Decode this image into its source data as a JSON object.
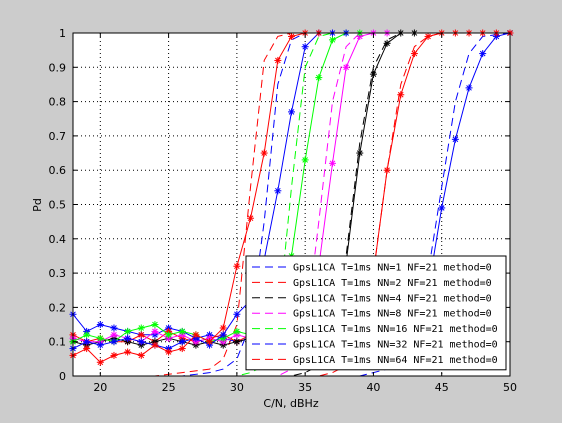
{
  "chart_data": {
    "type": "line",
    "xlabel": "C/N, dBHz",
    "ylabel": "Pd",
    "xlim": [
      18,
      50
    ],
    "ylim": [
      0,
      1
    ],
    "x_ticks": [
      20,
      25,
      30,
      35,
      40,
      45,
      50
    ],
    "y_ticks": [
      0,
      0.1,
      0.2,
      0.3,
      0.4,
      0.5,
      0.6,
      0.7,
      0.8,
      0.9,
      1
    ],
    "grid": true,
    "legend_position": "bottom-right",
    "series": [
      {
        "name": "GpsL1CA T=1ms NN=1 NF=21 method=0",
        "color": "#0000ff",
        "dash": true,
        "x": [
          18,
          20,
          22,
          24,
          26,
          28,
          29,
          30,
          31,
          32,
          33,
          34,
          35,
          36,
          37,
          38,
          39,
          40,
          41,
          42,
          43,
          44,
          45,
          46,
          47,
          48,
          50
        ],
        "y": [
          0,
          0,
          0,
          0,
          0,
          0,
          0,
          0,
          0,
          0,
          0,
          0,
          0,
          0,
          0,
          0,
          0,
          0.01,
          0.02,
          0.05,
          0.12,
          0.3,
          0.55,
          0.8,
          0.94,
          0.99,
          1
        ]
      },
      {
        "name": "GpsL1CA T=1ms NN=2 NF=21 method=0",
        "color": "#ff0000",
        "dash": true,
        "x": [
          18,
          20,
          22,
          24,
          26,
          28,
          30,
          32,
          34,
          35,
          36,
          37,
          38,
          39,
          40,
          41,
          42,
          43,
          44,
          45,
          46,
          50
        ],
        "y": [
          0,
          0,
          0,
          0,
          0,
          0,
          0,
          0,
          0,
          0,
          0,
          0.01,
          0.03,
          0.1,
          0.3,
          0.6,
          0.85,
          0.96,
          0.99,
          1,
          1,
          1
        ]
      },
      {
        "name": "GpsL1CA T=1ms NN=4 NF=21 method=0",
        "color": "#000000",
        "dash": true,
        "x": [
          18,
          20,
          22,
          24,
          26,
          28,
          30,
          32,
          34,
          35,
          36,
          37,
          38,
          39,
          40,
          41,
          42,
          43,
          50
        ],
        "y": [
          0,
          0,
          0,
          0,
          0,
          0,
          0,
          0,
          0,
          0.01,
          0.03,
          0.12,
          0.35,
          0.68,
          0.9,
          0.98,
          1,
          1,
          1
        ]
      },
      {
        "name": "GpsL1CA T=1ms NN=8 NF=21 method=0",
        "color": "#ff00ff",
        "dash": true,
        "x": [
          18,
          20,
          22,
          24,
          26,
          28,
          30,
          32,
          33,
          34,
          35,
          36,
          37,
          38,
          39,
          40,
          41,
          50
        ],
        "y": [
          0,
          0,
          0,
          0,
          0,
          0,
          0,
          0,
          0,
          0.02,
          0.12,
          0.45,
          0.8,
          0.96,
          1,
          1,
          1,
          1
        ]
      },
      {
        "name": "GpsL1CA T=1ms NN=16 NF=21 method=0",
        "color": "#00ff00",
        "dash": true,
        "x": [
          18,
          20,
          22,
          24,
          26,
          28,
          30,
          31,
          32,
          33,
          34,
          35,
          36,
          37,
          38,
          39,
          40,
          50
        ],
        "y": [
          0,
          0,
          0,
          0,
          0,
          0,
          0,
          0.01,
          0.03,
          0.15,
          0.55,
          0.9,
          0.99,
          1,
          1,
          1,
          1,
          1
        ]
      },
      {
        "name": "GpsL1CA T=1ms NN=32 NF=21 method=0",
        "color": "#0000ff",
        "dash": true,
        "x": [
          18,
          20,
          22,
          24,
          26,
          28,
          29,
          30,
          31,
          32,
          33,
          34,
          35,
          36,
          37,
          38,
          50
        ],
        "y": [
          0,
          0,
          0,
          0,
          0,
          0.01,
          0.02,
          0.05,
          0.15,
          0.45,
          0.85,
          0.98,
          1,
          1,
          1,
          1,
          1
        ]
      },
      {
        "name": "GpsL1CA T=1ms NN=64 NF=21 method=0",
        "color": "#ff0000",
        "dash": true,
        "x": [
          18,
          20,
          22,
          24,
          26,
          28,
          29,
          30,
          31,
          32,
          33,
          34,
          35,
          36,
          37,
          38,
          50
        ],
        "y": [
          0,
          0,
          0,
          0,
          0.01,
          0.02,
          0.05,
          0.15,
          0.55,
          0.92,
          0.99,
          1,
          1,
          1,
          1,
          1,
          1
        ]
      },
      {
        "name": "",
        "color": "#0000ff",
        "dash": false,
        "x": [
          18,
          19,
          20,
          21,
          22,
          23,
          24,
          25,
          26,
          27,
          28,
          29,
          30,
          31,
          32,
          33,
          34,
          35,
          36,
          37,
          38,
          39,
          40,
          41,
          42,
          43,
          44,
          45,
          46,
          47,
          48,
          49,
          50
        ],
        "y": [
          0.18,
          0.13,
          0.15,
          0.14,
          0.13,
          0.12,
          0.12,
          0.14,
          0.13,
          0.11,
          0.12,
          0.11,
          0.1,
          0.11,
          0.12,
          0.09,
          0.1,
          0.1,
          0.09,
          0.1,
          0.11,
          0.1,
          0.1,
          0.11,
          0.1,
          0.12,
          0.25,
          0.49,
          0.69,
          0.84,
          0.94,
          0.99,
          1
        ]
      },
      {
        "name": "",
        "color": "#ff0000",
        "dash": false,
        "x": [
          18,
          19,
          20,
          21,
          22,
          23,
          24,
          25,
          26,
          27,
          28,
          29,
          30,
          31,
          32,
          33,
          34,
          35,
          36,
          37,
          38,
          39,
          40,
          41,
          42,
          43,
          44,
          45,
          46,
          47,
          48,
          49,
          50
        ],
        "y": [
          0.12,
          0.1,
          0.11,
          0.1,
          0.1,
          0.12,
          0.1,
          0.13,
          0.11,
          0.1,
          0.11,
          0.12,
          0.1,
          0.12,
          0.13,
          0.11,
          0.1,
          0.12,
          0.1,
          0.11,
          0.13,
          0.14,
          0.3,
          0.6,
          0.82,
          0.94,
          0.99,
          1,
          1,
          1,
          1,
          1,
          1
        ]
      },
      {
        "name": "",
        "color": "#000000",
        "dash": false,
        "x": [
          18,
          19,
          20,
          21,
          22,
          23,
          24,
          25,
          26,
          27,
          28,
          29,
          30,
          31,
          32,
          33,
          34,
          35,
          36,
          37,
          38,
          39,
          40,
          41,
          42,
          43,
          50
        ],
        "y": [
          0.1,
          0.09,
          0.1,
          0.11,
          0.1,
          0.09,
          0.1,
          0.11,
          0.1,
          0.09,
          0.1,
          0.09,
          0.1,
          0.11,
          0.1,
          0.09,
          0.1,
          0.1,
          0.1,
          0.12,
          0.33,
          0.65,
          0.88,
          0.97,
          1,
          1,
          1
        ]
      },
      {
        "name": "",
        "color": "#ff00ff",
        "dash": false,
        "x": [
          18,
          19,
          20,
          21,
          22,
          23,
          24,
          25,
          26,
          27,
          28,
          29,
          30,
          31,
          32,
          33,
          34,
          35,
          36,
          37,
          38,
          39,
          40,
          41,
          50
        ],
        "y": [
          0.11,
          0.1,
          0.1,
          0.12,
          0.11,
          0.1,
          0.13,
          0.11,
          0.12,
          0.1,
          0.11,
          0.1,
          0.12,
          0.11,
          0.1,
          0.11,
          0.1,
          0.13,
          0.32,
          0.62,
          0.9,
          0.99,
          1,
          1,
          1
        ]
      },
      {
        "name": "",
        "color": "#00ff00",
        "dash": false,
        "x": [
          18,
          19,
          20,
          21,
          22,
          23,
          24,
          25,
          26,
          27,
          28,
          29,
          30,
          31,
          32,
          33,
          34,
          35,
          36,
          37,
          38,
          39,
          50
        ],
        "y": [
          0.1,
          0.12,
          0.11,
          0.1,
          0.13,
          0.14,
          0.15,
          0.12,
          0.13,
          0.12,
          0.1,
          0.11,
          0.13,
          0.12,
          0.11,
          0.14,
          0.35,
          0.63,
          0.87,
          0.98,
          1,
          1,
          1
        ]
      },
      {
        "name": "",
        "color": "#0000ff",
        "dash": false,
        "x": [
          18,
          19,
          20,
          21,
          22,
          23,
          24,
          25,
          26,
          27,
          28,
          29,
          30,
          31,
          32,
          33,
          34,
          35,
          36,
          37,
          38,
          50
        ],
        "y": [
          0.08,
          0.1,
          0.09,
          0.1,
          0.11,
          0.1,
          0.09,
          0.08,
          0.1,
          0.11,
          0.09,
          0.12,
          0.18,
          0.22,
          0.34,
          0.54,
          0.77,
          0.96,
          1,
          1,
          1,
          1
        ]
      },
      {
        "name": "",
        "color": "#ff0000",
        "dash": false,
        "x": [
          18,
          19,
          20,
          21,
          22,
          23,
          24,
          25,
          26,
          27,
          28,
          29,
          30,
          31,
          32,
          33,
          34,
          35,
          36,
          50
        ],
        "y": [
          0.06,
          0.08,
          0.04,
          0.06,
          0.07,
          0.06,
          0.09,
          0.07,
          0.08,
          0.12,
          0.1,
          0.14,
          0.32,
          0.46,
          0.65,
          0.92,
          0.99,
          1,
          1,
          1
        ]
      }
    ]
  }
}
